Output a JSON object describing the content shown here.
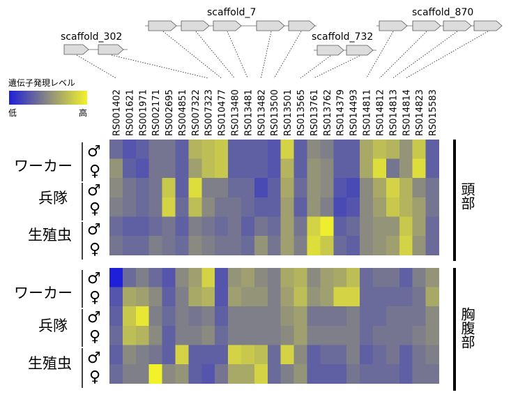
{
  "chart_data": {
    "type": "heatmap",
    "legend": {
      "title": "遺伝子発現レベル",
      "low_label": "低",
      "high_label": "高",
      "colors": {
        "low": "#1f1fd9",
        "mid": "#8a8a80",
        "high": "#f2f22b"
      }
    },
    "genes": [
      "RS001402",
      "RS001621",
      "RS001971",
      "RS002171",
      "RS002695",
      "RS004851",
      "RS007322",
      "RS007323",
      "RS010477",
      "RS013480",
      "RS013481",
      "RS013482",
      "RS013500",
      "RS013501",
      "RS013565",
      "RS013761",
      "RS013762",
      "RS014379",
      "RS014493",
      "RS014811",
      "RS014812",
      "RS014813",
      "RS014814",
      "RS014823",
      "RS015583"
    ],
    "scaffolds": [
      {
        "name": "scaffold_302",
        "genes": [
          "RS001402",
          "RS001621",
          "RS001971",
          "RS002171",
          "RS002695",
          "RS004851",
          "RS007322",
          "RS007323"
        ]
      },
      {
        "name": "scaffold_7",
        "genes": [
          "RS010477",
          "RS013480",
          "RS013481",
          "RS013482",
          "RS013500"
        ]
      },
      {
        "name": "scaffold_732",
        "genes": [
          "RS013565",
          "RS013761"
        ]
      },
      {
        "name": "scaffold_870",
        "genes": [
          "RS013762",
          "RS014379",
          "RS014493",
          "RS014811",
          "RS014812",
          "RS014813",
          "RS014814",
          "RS014823",
          "RS015583"
        ]
      }
    ],
    "castes": [
      "ワーカー",
      "兵隊",
      "生殖虫"
    ],
    "sexes": [
      "♂",
      "♀"
    ],
    "panels": [
      {
        "region": "頭部",
        "rows": [
          [
            0.35,
            0.25,
            0.3,
            0.4,
            0.4,
            0.3,
            0.7,
            0.75,
            0.8,
            0.3,
            0.3,
            0.3,
            0.25,
            0.85,
            0.3,
            0.5,
            0.45,
            0.3,
            0.3,
            0.65,
            0.75,
            0.7,
            0.55,
            0.8,
            0.3
          ],
          [
            0.55,
            0.3,
            0.25,
            0.4,
            0.4,
            0.3,
            0.6,
            0.75,
            0.8,
            0.3,
            0.3,
            0.3,
            0.25,
            0.7,
            0.3,
            0.55,
            0.5,
            0.3,
            0.3,
            0.65,
            0.9,
            0.4,
            0.55,
            0.9,
            0.3
          ],
          [
            0.5,
            0.4,
            0.35,
            0.4,
            0.8,
            0.3,
            0.9,
            0.45,
            0.45,
            0.35,
            0.35,
            0.2,
            0.3,
            0.65,
            0.35,
            0.55,
            0.5,
            0.25,
            0.2,
            0.5,
            0.65,
            0.85,
            0.7,
            0.5,
            0.4
          ],
          [
            0.45,
            0.4,
            0.35,
            0.4,
            0.85,
            0.35,
            0.75,
            0.5,
            0.4,
            0.4,
            0.35,
            0.3,
            0.3,
            0.6,
            0.3,
            0.55,
            0.45,
            0.2,
            0.25,
            0.5,
            0.6,
            0.8,
            0.7,
            0.6,
            0.4
          ],
          [
            0.35,
            0.3,
            0.3,
            0.35,
            0.4,
            0.3,
            0.45,
            0.4,
            0.35,
            0.4,
            0.3,
            0.4,
            0.35,
            0.6,
            0.4,
            0.85,
            0.98,
            0.3,
            0.35,
            0.5,
            0.55,
            0.55,
            0.8,
            0.6,
            0.35
          ],
          [
            0.4,
            0.35,
            0.35,
            0.45,
            0.4,
            0.35,
            0.5,
            0.45,
            0.4,
            0.4,
            0.35,
            0.55,
            0.4,
            0.6,
            0.45,
            0.9,
            0.8,
            0.35,
            0.3,
            0.5,
            0.55,
            0.6,
            0.85,
            0.55,
            0.35
          ]
        ]
      },
      {
        "region": "胸腹部",
        "rows": [
          [
            0.0,
            0.35,
            0.45,
            0.35,
            0.25,
            0.5,
            0.6,
            0.85,
            0.25,
            0.55,
            0.6,
            0.5,
            0.45,
            0.65,
            0.7,
            0.5,
            0.6,
            0.65,
            0.75,
            0.35,
            0.4,
            0.4,
            0.3,
            0.45,
            0.55
          ],
          [
            0.25,
            0.65,
            0.6,
            0.5,
            0.3,
            0.45,
            0.65,
            0.7,
            0.25,
            0.6,
            0.55,
            0.55,
            0.45,
            0.6,
            0.75,
            0.55,
            0.6,
            0.85,
            0.85,
            0.35,
            0.35,
            0.35,
            0.35,
            0.4,
            0.65
          ],
          [
            0.3,
            0.8,
            0.95,
            0.45,
            0.35,
            0.45,
            0.4,
            0.45,
            0.3,
            0.45,
            0.45,
            0.45,
            0.45,
            0.55,
            0.6,
            0.4,
            0.4,
            0.4,
            0.45,
            0.35,
            0.35,
            0.4,
            0.4,
            0.4,
            0.5
          ],
          [
            0.35,
            0.75,
            0.7,
            0.5,
            0.3,
            0.45,
            0.45,
            0.5,
            0.35,
            0.45,
            0.45,
            0.45,
            0.45,
            0.5,
            0.6,
            0.45,
            0.45,
            0.45,
            0.45,
            0.35,
            0.4,
            0.4,
            0.4,
            0.45,
            0.5
          ],
          [
            0.3,
            0.5,
            0.45,
            0.4,
            0.3,
            0.85,
            0.3,
            0.3,
            0.3,
            0.85,
            0.8,
            0.75,
            0.35,
            0.85,
            0.5,
            0.3,
            0.35,
            0.35,
            0.45,
            0.3,
            0.35,
            0.4,
            0.3,
            0.4,
            0.45
          ],
          [
            0.35,
            0.45,
            0.45,
            1.0,
            0.5,
            0.55,
            0.3,
            0.25,
            0.4,
            0.65,
            0.65,
            0.85,
            0.35,
            0.45,
            0.55,
            0.3,
            0.3,
            0.3,
            0.4,
            0.35,
            0.35,
            0.35,
            0.3,
            0.4,
            0.4
          ]
        ]
      }
    ]
  }
}
